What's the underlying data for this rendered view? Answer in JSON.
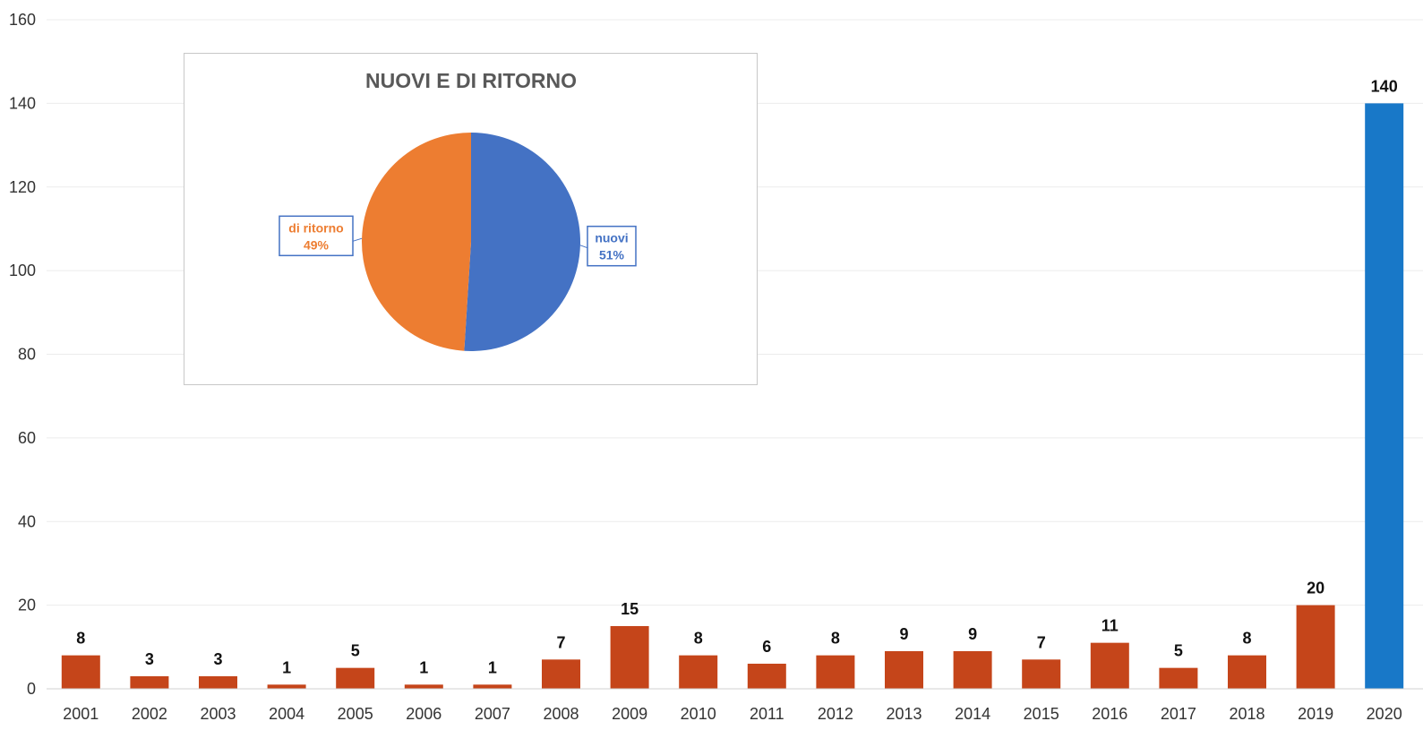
{
  "chart_data": [
    {
      "type": "bar",
      "categories": [
        "2001",
        "2002",
        "2003",
        "2004",
        "2005",
        "2006",
        "2007",
        "2008",
        "2009",
        "2010",
        "2011",
        "2012",
        "2013",
        "2014",
        "2015",
        "2016",
        "2017",
        "2018",
        "2019",
        "2020"
      ],
      "values": [
        8,
        3,
        3,
        1,
        5,
        1,
        1,
        7,
        15,
        8,
        6,
        8,
        9,
        9,
        7,
        11,
        5,
        8,
        20,
        140
      ],
      "bar_colors": [
        "#c5451a",
        "#c5451a",
        "#c5451a",
        "#c5451a",
        "#c5451a",
        "#c5451a",
        "#c5451a",
        "#c5451a",
        "#c5451a",
        "#c5451a",
        "#c5451a",
        "#c5451a",
        "#c5451a",
        "#c5451a",
        "#c5451a",
        "#c5451a",
        "#c5451a",
        "#c5451a",
        "#c5451a",
        "#1878c8"
      ],
      "ylim": [
        0,
        160
      ],
      "yticks": [
        0,
        20,
        40,
        60,
        80,
        100,
        120,
        140,
        160
      ],
      "grid": true,
      "data_labels": true
    },
    {
      "type": "pie",
      "title": "NUOVI E DI RITORNO",
      "slices": [
        {
          "label": "nuovi",
          "pct_label": "51%",
          "value": 51,
          "color": "#4472c4"
        },
        {
          "label": "di ritorno",
          "pct_label": "49%",
          "value": 49,
          "color": "#ed7d31"
        }
      ]
    }
  ]
}
